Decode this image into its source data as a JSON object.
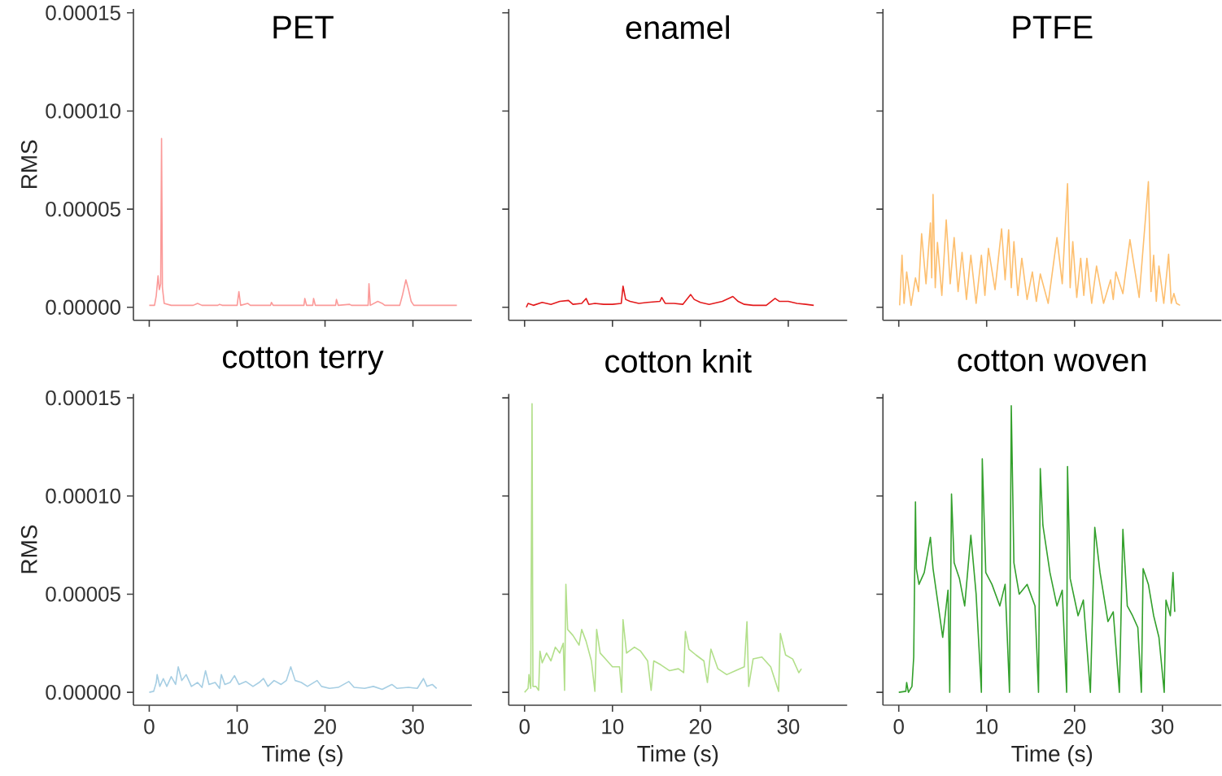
{
  "chart_data": [
    {
      "type": "line",
      "title": "PET",
      "ylabel": "RMS",
      "color": "#fb9a99",
      "tick_labels": "y",
      "xlim": [
        -1.8,
        36.7
      ],
      "ylim": [
        -6.6e-06,
        0.000152
      ],
      "xticks": [
        0,
        10,
        20,
        30
      ],
      "yticks": [
        {
          "value": 0,
          "label": "0.00000"
        },
        {
          "value": 5e-05,
          "label": "0.00005"
        },
        {
          "value": 0.0001,
          "label": "0.00010"
        },
        {
          "value": 0.00015,
          "label": "0.00015"
        }
      ],
      "x": [
        0,
        0.6,
        0.8,
        1.0,
        1.15,
        1.3,
        1.4,
        1.5,
        1.7,
        2.5,
        5,
        5.5,
        6,
        7.8,
        8,
        8.3,
        10,
        10.2,
        10.4,
        11.2,
        11.5,
        13.8,
        13.9,
        14.1,
        15.5,
        17.6,
        17.7,
        17.9,
        18.6,
        18.7,
        18.9,
        21.2,
        21.3,
        21.5,
        22.8,
        23,
        24.9,
        25,
        25.15,
        26,
        26.5,
        26.8,
        28.5,
        28.8,
        29.2,
        29.5,
        29.8,
        30.1,
        35
      ],
      "values": [
        1e-06,
        1e-06,
        6e-06,
        1.6e-05,
        9e-06,
        1.2e-05,
        8.6e-05,
        1e-05,
        2e-06,
        1e-06,
        1e-06,
        2e-06,
        1e-06,
        1e-06,
        1.5e-06,
        1e-06,
        1e-06,
        8e-06,
        1e-06,
        2e-06,
        1e-06,
        1e-06,
        2.5e-06,
        1e-06,
        1e-06,
        1e-06,
        4.5e-06,
        1e-06,
        1e-06,
        4.5e-06,
        1e-06,
        1e-06,
        4e-06,
        1e-06,
        1.5e-06,
        1e-06,
        1e-06,
        1.2e-05,
        1e-06,
        3e-06,
        2e-06,
        1e-06,
        1e-06,
        6e-06,
        1.4e-05,
        9e-06,
        3e-06,
        1e-06,
        1e-06
      ]
    },
    {
      "type": "line",
      "title": "enamel",
      "color": "#e31a1c",
      "tick_labels": false,
      "xlim": [
        -1.8,
        36.7
      ],
      "ylim": [
        -6.6e-06,
        0.000152
      ],
      "xticks": [
        0,
        10,
        20,
        30
      ],
      "yticks": [
        {
          "value": 0,
          "label": null
        },
        {
          "value": 5e-05,
          "label": null
        },
        {
          "value": 0.0001,
          "label": null
        },
        {
          "value": 0.00015,
          "label": null
        }
      ],
      "x": [
        0.2,
        0.4,
        1,
        2,
        3,
        4,
        5,
        5.5,
        6.5,
        7,
        7.3,
        8,
        9,
        10,
        11,
        11.2,
        11.5,
        12,
        13,
        14,
        15.4,
        15.6,
        16,
        17,
        18,
        18.9,
        19.3,
        20,
        21,
        22.5,
        23.7,
        24.3,
        25,
        26,
        27.5,
        28.5,
        29,
        30,
        31,
        32,
        32.9
      ],
      "values": [
        0,
        2e-06,
        1e-06,
        2.5e-06,
        1.5e-06,
        3e-06,
        3.5e-06,
        1.5e-06,
        2e-06,
        4.5e-06,
        1.5e-06,
        2e-06,
        1.5e-06,
        1.5e-06,
        2e-06,
        1.08e-05,
        4e-06,
        3e-06,
        2e-06,
        2.5e-06,
        3e-06,
        5e-06,
        2e-06,
        2e-06,
        1.5e-06,
        6.5e-06,
        4e-06,
        2.5e-06,
        1.5e-06,
        3e-06,
        5.5e-06,
        3e-06,
        1.5e-06,
        1e-06,
        1e-06,
        4.5e-06,
        3e-06,
        3e-06,
        2e-06,
        1.5e-06,
        1e-06
      ]
    },
    {
      "type": "line",
      "title": "PTFE",
      "color": "#fdbf6f",
      "tick_labels": false,
      "xlim": [
        -1.8,
        36.7
      ],
      "ylim": [
        -6.6e-06,
        0.000152
      ],
      "xticks": [
        0,
        10,
        20,
        30
      ],
      "yticks": [
        {
          "value": 0,
          "label": null
        },
        {
          "value": 5e-05,
          "label": null
        },
        {
          "value": 0.0001,
          "label": null
        },
        {
          "value": 0.00015,
          "label": null
        }
      ],
      "x": [
        0.1,
        0.37,
        0.6,
        0.9,
        1.4,
        1.9,
        2.25,
        2.6,
        3.1,
        3.6,
        3.75,
        3.9,
        4.15,
        4.4,
        4.9,
        5.4,
        5.85,
        6.3,
        6.75,
        7.2,
        7.7,
        8.2,
        8.8,
        9.4,
        9.8,
        10.2,
        10.95,
        11.7,
        12.1,
        12.5,
        12.8,
        13.1,
        13.55,
        14.0,
        14.6,
        15.2,
        15.65,
        16.1,
        17.0,
        18.0,
        18.6,
        19.2,
        19.5,
        19.8,
        20.25,
        20.7,
        21.05,
        21.4,
        21.95,
        22.5,
        23.3,
        24.1,
        24.4,
        24.7,
        25.5,
        26.3,
        27.35,
        28.4,
        28.7,
        29.0,
        29.3,
        29.6,
        30.15,
        30.7,
        31.0,
        31.3,
        31.6,
        32.0
      ],
      "values": [
        1e-06,
        2.65e-05,
        2e-06,
        1.8e-05,
        1e-06,
        1.5e-05,
        8e-06,
        3.75e-05,
        1.2e-05,
        4.3e-05,
        1.5e-05,
        5.75e-05,
        1e-05,
        3.3e-05,
        6e-06,
        4.45e-05,
        1.2e-05,
        3.55e-05,
        8e-06,
        2.8e-05,
        4e-06,
        2.65e-05,
        2e-06,
        2.65e-05,
        6e-06,
        3e-05,
        9e-06,
        4e-05,
        1.4e-05,
        3.95e-05,
        1e-05,
        3.35e-05,
        6e-06,
        2.5e-05,
        4e-06,
        1.8e-05,
        3e-06,
        1.7e-05,
        2e-06,
        3.55e-05,
        1.2e-05,
        6.3e-05,
        1e-05,
        3.35e-05,
        5e-06,
        2.5e-05,
        6e-06,
        2.5e-05,
        2e-06,
        2.1e-05,
        2e-06,
        1.4e-05,
        4e-06,
        1.8e-05,
        7e-06,
        3.45e-05,
        5e-06,
        6.4e-05,
        8e-06,
        2.65e-05,
        3e-06,
        2.1e-05,
        2e-06,
        2.7e-05,
        2e-06,
        7e-06,
        2e-06,
        1e-06
      ]
    },
    {
      "type": "line",
      "title": "cotton terry",
      "xlabel": "Time (s)",
      "ylabel": "RMS",
      "color": "#a6cee3",
      "xlim": [
        -1.8,
        36.7
      ],
      "ylim": [
        -6.6e-06,
        0.000152
      ],
      "xticks": [
        0,
        10,
        20,
        30
      ],
      "yticks": [
        {
          "value": 0,
          "label": "0.00000"
        },
        {
          "value": 5e-05,
          "label": "0.00005"
        },
        {
          "value": 0.0001,
          "label": "0.00010"
        },
        {
          "value": 0.00015,
          "label": "0.00015"
        }
      ],
      "x": [
        0,
        0.5,
        0.8,
        0.9,
        1.2,
        1.6,
        2,
        2.5,
        3,
        3.3,
        3.7,
        4.2,
        4.8,
        5.5,
        6,
        6.4,
        6.8,
        7.5,
        8,
        8.2,
        8.6,
        9.2,
        9.7,
        10.2,
        11,
        11.8,
        12.5,
        13,
        13.5,
        14.2,
        15,
        15.6,
        16.1,
        16.6,
        17.3,
        18,
        19.1,
        19.6,
        20.5,
        21.5,
        22.7,
        23.3,
        24.5,
        25.5,
        26.5,
        27.6,
        28.2,
        29.5,
        30.5,
        31.2,
        31.6,
        32.2,
        32.7
      ],
      "values": [
        0,
        5e-07,
        5e-06,
        9e-06,
        3e-06,
        7e-06,
        3e-06,
        8e-06,
        4e-06,
        1.3e-05,
        6e-06,
        9e-06,
        3e-06,
        5e-06,
        2.5e-06,
        1.1e-05,
        4e-06,
        5e-06,
        2e-06,
        9e-06,
        4e-06,
        5e-06,
        8.5e-06,
        4e-06,
        5.5e-06,
        3e-06,
        5e-06,
        7e-06,
        3e-06,
        6e-06,
        4e-06,
        6e-06,
        1.3e-05,
        6e-06,
        5e-06,
        3e-06,
        6e-06,
        3e-06,
        2e-06,
        2.5e-06,
        5.5e-06,
        2.5e-06,
        2e-06,
        3e-06,
        1.5e-06,
        4e-06,
        2e-06,
        2.5e-06,
        2e-06,
        7e-06,
        3e-06,
        4e-06,
        2e-06
      ]
    },
    {
      "type": "line",
      "title": "cotton knit",
      "xlabel": "Time (s)",
      "color": "#b2df8a",
      "tick_labels": "x",
      "xlim": [
        -1.8,
        36.7
      ],
      "ylim": [
        -6.6e-06,
        0.000152
      ],
      "xticks": [
        0,
        10,
        20,
        30
      ],
      "yticks": [
        {
          "value": 0,
          "label": null
        },
        {
          "value": 5e-05,
          "label": null
        },
        {
          "value": 0.0001,
          "label": null
        },
        {
          "value": 0.00015,
          "label": null
        }
      ],
      "x": [
        0,
        0.4,
        0.5,
        0.7,
        0.85,
        0.95,
        1.3,
        1.6,
        1.75,
        2,
        2.5,
        3,
        3.5,
        4,
        4.4,
        4.55,
        4.7,
        4.9,
        5.5,
        6.2,
        6.5,
        7,
        7.6,
        8.0,
        8.2,
        8.6,
        9.2,
        10,
        10.8,
        11.05,
        11.2,
        11.6,
        12.5,
        13.2,
        14,
        14.4,
        14.7,
        15.5,
        16.5,
        17.5,
        18.1,
        18.3,
        18.7,
        19.5,
        20.4,
        20.8,
        21.2,
        22,
        23,
        24,
        25,
        25.3,
        25.5,
        26,
        27,
        28,
        28.9,
        29.1,
        29.7,
        30.5,
        31.2,
        31.5
      ],
      "values": [
        0,
        2e-06,
        9e-06,
        2e-06,
        0.000147,
        3e-06,
        3e-06,
        1e-06,
        2.1e-05,
        1.5e-05,
        2e-05,
        1.6e-05,
        2.3e-05,
        2e-05,
        2.5e-05,
        1e-06,
        5.5e-05,
        3.2e-05,
        2.9e-05,
        2.4e-05,
        3.2e-05,
        2.6e-05,
        1.6e-05,
        5e-07,
        3.2e-05,
        2e-05,
        1.7e-05,
        1.3e-05,
        1.3e-05,
        0,
        3.7e-05,
        2e-05,
        2.3e-05,
        2.1e-05,
        1.6e-05,
        1e-06,
        1.6e-05,
        1.4e-05,
        1.1e-05,
        1.2e-05,
        1e-05,
        3.1e-05,
        2.2e-05,
        1.9e-05,
        1.6e-05,
        5e-06,
        2.2e-05,
        1.2e-05,
        9e-06,
        1.1e-05,
        1.3e-05,
        3.6e-05,
        3e-06,
        1.7e-05,
        1.8e-05,
        1.3e-05,
        5e-07,
        3e-05,
        1.9e-05,
        1.7e-05,
        1e-05,
        1.2e-05
      ]
    },
    {
      "type": "line",
      "title": "cotton woven",
      "xlabel": "Time (s)",
      "color": "#33a02c",
      "tick_labels": "x",
      "xlim": [
        -1.8,
        36.7
      ],
      "ylim": [
        -6.6e-06,
        0.000152
      ],
      "xticks": [
        0,
        10,
        20,
        30
      ],
      "yticks": [
        {
          "value": 0,
          "label": null
        },
        {
          "value": 5e-05,
          "label": null
        },
        {
          "value": 0.0001,
          "label": null
        },
        {
          "value": 0.00015,
          "label": null
        }
      ],
      "x": [
        0,
        0.8,
        0.9,
        1.1,
        1.5,
        1.7,
        1.9,
        2.0,
        2.3,
        2.9,
        3.6,
        3.9,
        4.5,
        5.0,
        5.6,
        5.8,
        6.0,
        6.3,
        6.9,
        7.5,
        8.2,
        8.8,
        9.4,
        9.5,
        9.9,
        10.6,
        11.5,
        12.1,
        12.6,
        12.8,
        13.1,
        13.7,
        14.6,
        15.5,
        15.9,
        16.1,
        16.4,
        17.2,
        18.0,
        18.6,
        19.1,
        19.2,
        19.5,
        20.4,
        21.0,
        21.8,
        22.3,
        22.9,
        23.8,
        24.4,
        25.1,
        25.5,
        26.0,
        26.6,
        27.2,
        27.6,
        27.8,
        28.4,
        29.0,
        29.6,
        30.2,
        30.4,
        30.9,
        31.2,
        31.4
      ],
      "values": [
        0,
        5e-07,
        5e-06,
        0,
        3e-06,
        1.8e-05,
        9.7e-05,
        6.3e-05,
        5.5e-05,
        6.1e-05,
        7.9e-05,
        6.3e-05,
        4.4e-05,
        2.8e-05,
        5.2e-05,
        0,
        0.000101,
        6.6e-05,
        5.8e-05,
        4.4e-05,
        8e-05,
        5e-05,
        0,
        0.000119,
        6.1e-05,
        5.5e-05,
        4.4e-05,
        5.5e-05,
        0,
        0.000146,
        6.6e-05,
        5e-05,
        5.5e-05,
        4.4e-05,
        0,
        0.000114,
        8.5e-05,
        6.1e-05,
        4.4e-05,
        5.2e-05,
        0,
        0.000115,
        5.8e-05,
        3.9e-05,
        4.7e-05,
        0,
        8.4e-05,
        6.1e-05,
        3.6e-05,
        4.1e-05,
        0,
        8.3e-05,
        4.4e-05,
        3.9e-05,
        3.3e-05,
        0,
        6.3e-05,
        5.5e-05,
        3.9e-05,
        2.8e-05,
        0,
        4.7e-05,
        3.9e-05,
        6.1e-05,
        4.1e-05
      ]
    }
  ]
}
